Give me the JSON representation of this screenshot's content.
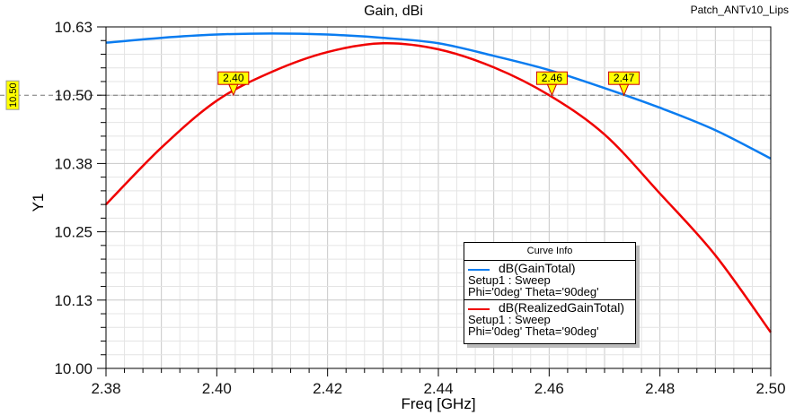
{
  "chart_data": {
    "type": "line",
    "title": "Gain, dBi",
    "project_label": "Patch_ANTv10_Lips",
    "xlabel": "Freq [GHz]",
    "ylabel": "Y1",
    "xlim": [
      2.38,
      2.5
    ],
    "ylim": [
      10.0,
      10.625
    ],
    "xticks": [
      "2.38",
      "2.40",
      "2.42",
      "2.44",
      "2.46",
      "2.48",
      "2.50"
    ],
    "yticks": [
      "10.00",
      "10.13",
      "10.25",
      "10.38",
      "10.50",
      "10.63"
    ],
    "grid": true,
    "x": [
      2.38,
      2.39,
      2.4,
      2.41,
      2.42,
      2.43,
      2.44,
      2.45,
      2.46,
      2.47,
      2.48,
      2.49,
      2.5
    ],
    "series": [
      {
        "name": "dB(GainTotal)",
        "setup": "Setup1 : Sweep",
        "params": "Phi='0deg' Theta='90deg'",
        "color": "#0a7cf0",
        "values": [
          10.596,
          10.605,
          10.611,
          10.613,
          10.611,
          10.605,
          10.595,
          10.572,
          10.546,
          10.513,
          10.477,
          10.436,
          10.384
        ]
      },
      {
        "name": "dB(RealizedGainTotal)",
        "setup": "Setup1 : Sweep",
        "params": "Phi='0deg' Theta='90deg'",
        "color": "#f00000",
        "values": [
          10.3,
          10.404,
          10.49,
          10.543,
          10.579,
          10.595,
          10.584,
          10.551,
          10.5,
          10.428,
          10.32,
          10.207,
          10.066
        ]
      }
    ],
    "reference_line": {
      "y": 10.5,
      "label": "10.50"
    },
    "markers": [
      {
        "x": 2.403,
        "label": "2.40"
      },
      {
        "x": 2.4605,
        "label": "2.46"
      },
      {
        "x": 2.4735,
        "label": "2.47"
      }
    ],
    "legend": {
      "title": "Curve Info",
      "placement": "bottom-right"
    }
  }
}
